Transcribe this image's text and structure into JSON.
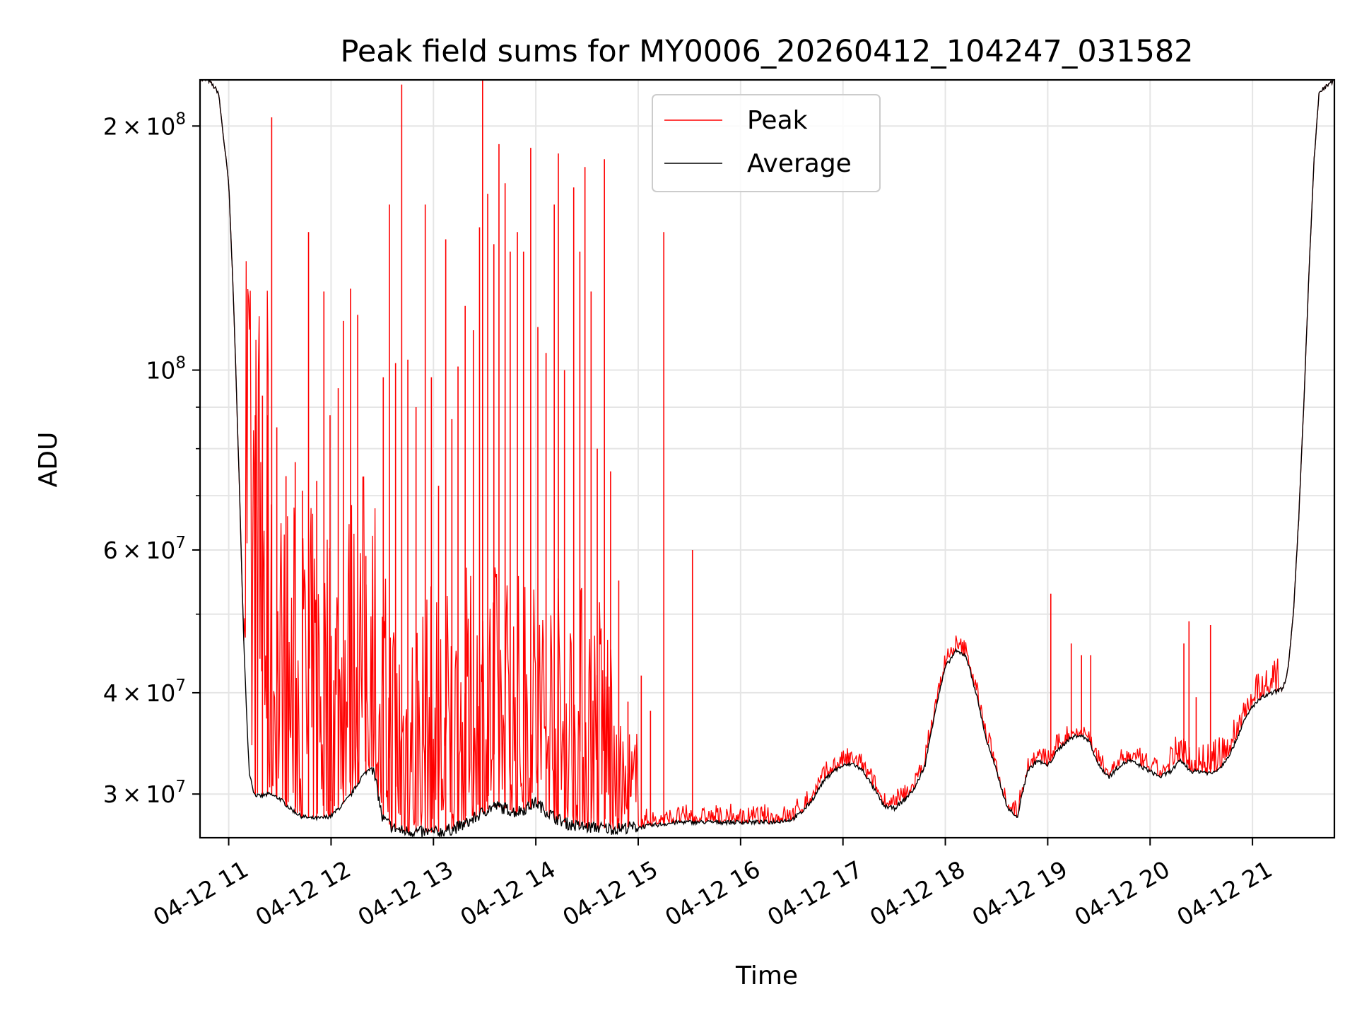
{
  "chart_data": {
    "type": "line",
    "title": "Peak field sums for MY0006_20260412_104247_031582",
    "xlabel": "Time",
    "ylabel": "ADU",
    "yscale": "log",
    "grid": true,
    "legend_position": "upper center",
    "xlim": [
      10.72,
      21.8
    ],
    "ylim": [
      26500000,
      228000000
    ],
    "x_unit": "hour of 2026-04-12",
    "x_ticks": [
      {
        "value": 11,
        "label": "04-12 11"
      },
      {
        "value": 12,
        "label": "04-12 12"
      },
      {
        "value": 13,
        "label": "04-12 13"
      },
      {
        "value": 14,
        "label": "04-12 14"
      },
      {
        "value": 15,
        "label": "04-12 15"
      },
      {
        "value": 16,
        "label": "04-12 16"
      },
      {
        "value": 17,
        "label": "04-12 17"
      },
      {
        "value": 18,
        "label": "04-12 18"
      },
      {
        "value": 19,
        "label": "04-12 19"
      },
      {
        "value": 20,
        "label": "04-12 20"
      },
      {
        "value": 21,
        "label": "04-12 21"
      }
    ],
    "y_ticks": [
      {
        "value": 30000000,
        "mantissa": "3",
        "exponent": "7"
      },
      {
        "value": 40000000,
        "mantissa": "4",
        "exponent": "7"
      },
      {
        "value": 60000000,
        "mantissa": "6",
        "exponent": "7"
      },
      {
        "value": 100000000,
        "mantissa": "",
        "exponent": "8"
      },
      {
        "value": 200000000,
        "mantissa": "2",
        "exponent": "8"
      }
    ],
    "y_minor_ticks": [
      50000000,
      70000000,
      80000000,
      90000000
    ],
    "series": [
      {
        "name": "Average",
        "color": "#000000",
        "x": [
          10.72,
          10.8,
          10.9,
          11.0,
          11.05,
          11.1,
          11.15,
          11.2,
          11.25,
          11.3,
          11.4,
          11.5,
          11.6,
          11.7,
          11.8,
          11.9,
          12.0,
          12.1,
          12.2,
          12.3,
          12.4,
          12.45,
          12.5,
          12.6,
          12.7,
          12.8,
          12.9,
          13.0,
          13.1,
          13.2,
          13.3,
          13.4,
          13.5,
          13.6,
          13.7,
          13.8,
          13.9,
          14.0,
          14.1,
          14.2,
          14.3,
          14.4,
          14.5,
          14.6,
          14.7,
          14.8,
          14.9,
          15.0,
          15.1,
          15.2,
          15.3,
          15.4,
          15.5,
          15.6,
          15.7,
          15.8,
          15.9,
          16.0,
          16.1,
          16.2,
          16.3,
          16.4,
          16.5,
          16.6,
          16.7,
          16.8,
          16.9,
          17.0,
          17.1,
          17.2,
          17.3,
          17.4,
          17.5,
          17.6,
          17.7,
          17.8,
          17.9,
          18.0,
          18.1,
          18.2,
          18.3,
          18.4,
          18.5,
          18.6,
          18.7,
          18.8,
          18.9,
          19.0,
          19.1,
          19.2,
          19.3,
          19.4,
          19.5,
          19.6,
          19.7,
          19.8,
          19.9,
          20.0,
          20.1,
          20.2,
          20.3,
          20.4,
          20.5,
          20.6,
          20.7,
          20.8,
          20.9,
          21.0,
          21.1,
          21.2,
          21.3,
          21.35,
          21.4,
          21.45,
          21.5,
          21.55,
          21.6,
          21.65,
          21.8
        ],
        "values": [
          228000000,
          228000000,
          220000000,
          170000000,
          120000000,
          75000000,
          45000000,
          32000000,
          30000000,
          29800000,
          30000000,
          29600000,
          28800000,
          28200000,
          28000000,
          28000000,
          28200000,
          29000000,
          30000000,
          31500000,
          32500000,
          30500000,
          28000000,
          27300000,
          27000000,
          27000000,
          26900000,
          26900000,
          27000000,
          27200000,
          27500000,
          28000000,
          28600000,
          29000000,
          28800000,
          28500000,
          28800000,
          29300000,
          28600000,
          28000000,
          27600000,
          27400000,
          27300000,
          27300000,
          27200000,
          27200000,
          27300000,
          27300000,
          27400000,
          27500000,
          27600000,
          27700000,
          27700000,
          27700000,
          27700000,
          27700000,
          27700000,
          27700000,
          27700000,
          27700000,
          27700000,
          27800000,
          27900000,
          28500000,
          29500000,
          31000000,
          32000000,
          32500000,
          32700000,
          32000000,
          30500000,
          29000000,
          28800000,
          29500000,
          30500000,
          32500000,
          38000000,
          43000000,
          45000000,
          44500000,
          40000000,
          35000000,
          32000000,
          29000000,
          28000000,
          32000000,
          33000000,
          32500000,
          34000000,
          35000000,
          35500000,
          35000000,
          32500000,
          31500000,
          32500000,
          33000000,
          32500000,
          32000000,
          31500000,
          32000000,
          33000000,
          32000000,
          32000000,
          31800000,
          32500000,
          34000000,
          36500000,
          38500000,
          39500000,
          40000000,
          40500000,
          43000000,
          50000000,
          65000000,
          90000000,
          130000000,
          180000000,
          220000000,
          228000000
        ]
      },
      {
        "name": "Peak",
        "color": "#ff0000",
        "spikes": [
          {
            "x": 11.26,
            "value": 88000000
          },
          {
            "x": 11.33,
            "value": 93000000
          },
          {
            "x": 11.38,
            "value": 88000000
          },
          {
            "x": 11.42,
            "value": 205000000
          },
          {
            "x": 11.47,
            "value": 85000000
          },
          {
            "x": 11.56,
            "value": 74000000
          },
          {
            "x": 11.65,
            "value": 77000000
          },
          {
            "x": 11.72,
            "value": 71000000
          },
          {
            "x": 11.78,
            "value": 148000000
          },
          {
            "x": 11.86,
            "value": 73000000
          },
          {
            "x": 11.93,
            "value": 125000000
          },
          {
            "x": 11.99,
            "value": 88000000
          },
          {
            "x": 12.07,
            "value": 95000000
          },
          {
            "x": 12.12,
            "value": 115000000
          },
          {
            "x": 12.19,
            "value": 126000000
          },
          {
            "x": 12.26,
            "value": 117000000
          },
          {
            "x": 12.34,
            "value": 59000000
          },
          {
            "x": 12.51,
            "value": 98000000
          },
          {
            "x": 12.57,
            "value": 160000000
          },
          {
            "x": 12.63,
            "value": 102000000
          },
          {
            "x": 12.69,
            "value": 225000000
          },
          {
            "x": 12.75,
            "value": 103000000
          },
          {
            "x": 12.83,
            "value": 90000000
          },
          {
            "x": 12.92,
            "value": 160000000
          },
          {
            "x": 12.98,
            "value": 98000000
          },
          {
            "x": 13.05,
            "value": 72000000
          },
          {
            "x": 13.12,
            "value": 145000000
          },
          {
            "x": 13.18,
            "value": 87000000
          },
          {
            "x": 13.24,
            "value": 101000000
          },
          {
            "x": 13.31,
            "value": 120000000
          },
          {
            "x": 13.39,
            "value": 112000000
          },
          {
            "x": 13.45,
            "value": 150000000
          },
          {
            "x": 13.48,
            "value": 228000000
          },
          {
            "x": 13.53,
            "value": 165000000
          },
          {
            "x": 13.59,
            "value": 143000000
          },
          {
            "x": 13.64,
            "value": 190000000
          },
          {
            "x": 13.7,
            "value": 170000000
          },
          {
            "x": 13.75,
            "value": 140000000
          },
          {
            "x": 13.82,
            "value": 148000000
          },
          {
            "x": 13.88,
            "value": 140000000
          },
          {
            "x": 13.95,
            "value": 188000000
          },
          {
            "x": 14.02,
            "value": 113000000
          },
          {
            "x": 14.1,
            "value": 105000000
          },
          {
            "x": 14.18,
            "value": 160000000
          },
          {
            "x": 14.22,
            "value": 185000000
          },
          {
            "x": 14.28,
            "value": 100000000
          },
          {
            "x": 14.37,
            "value": 168000000
          },
          {
            "x": 14.43,
            "value": 140000000
          },
          {
            "x": 14.48,
            "value": 178000000
          },
          {
            "x": 14.54,
            "value": 125000000
          },
          {
            "x": 14.6,
            "value": 80000000
          },
          {
            "x": 14.67,
            "value": 182000000
          },
          {
            "x": 14.73,
            "value": 75000000
          },
          {
            "x": 14.81,
            "value": 55000000
          },
          {
            "x": 14.9,
            "value": 39000000
          },
          {
            "x": 15.03,
            "value": 42000000
          },
          {
            "x": 15.12,
            "value": 38000000
          },
          {
            "x": 15.25,
            "value": 148000000
          },
          {
            "x": 15.53,
            "value": 60000000
          },
          {
            "x": 19.03,
            "value": 53000000
          },
          {
            "x": 19.23,
            "value": 46000000
          },
          {
            "x": 19.33,
            "value": 44500000
          },
          {
            "x": 19.42,
            "value": 44500000
          },
          {
            "x": 20.33,
            "value": 46000000
          },
          {
            "x": 20.38,
            "value": 49000000
          },
          {
            "x": 20.45,
            "value": 39500000
          },
          {
            "x": 20.59,
            "value": 48500000
          }
        ]
      }
    ]
  }
}
